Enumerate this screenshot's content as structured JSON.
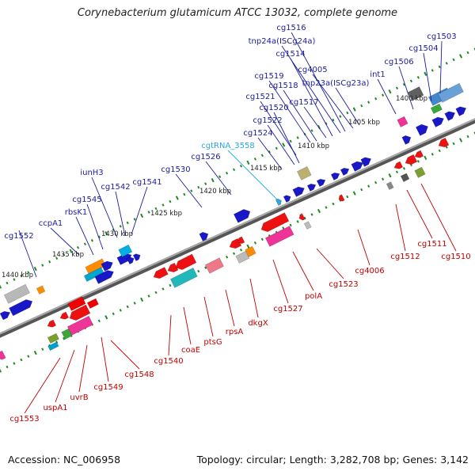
{
  "title": "Corynebacterium glutamicum ATCC 13032, complete genome",
  "footer": {
    "accession": "Accession: NC_006958",
    "topology": "Topology: circular; Length: 3,282,708 bp; Genes: 3,142"
  },
  "colors": {
    "forward_label": "#1c1c9c",
    "reverse_label": "#c00000",
    "rna_label": "#2aa8d8",
    "backbone": "#7a7a7a",
    "ticks": "#1f8a1f"
  },
  "kbp_labels": [
    "1440 kbp",
    "1435 kbp",
    "1430 kbp",
    "1425 kbp",
    "1420 kbp",
    "1415 kbp",
    "1410 kbp",
    "1405 kbp",
    "1400 kbp"
  ],
  "forward_labels": [
    "cg1552",
    "ccpA1",
    "rbsK1",
    "cg1545",
    "iunH3",
    "cg1542",
    "cg1541",
    "cg1530",
    "cg1526",
    "cg1524",
    "cg1522",
    "cg1520",
    "cg1521",
    "cg1519",
    "cg1518",
    "cg1517",
    "cg1514",
    "tnp24a(ISCg24a)",
    "cg1516",
    "cg4005",
    "tnp23a(ISCg23a)",
    "int1",
    "cg1506",
    "cg1504",
    "cg1503"
  ],
  "rna_labels": [
    "cgtRNA_3558"
  ],
  "reverse_labels": [
    "cg1553",
    "uspA1",
    "uvrB",
    "cg1549",
    "cg1548",
    "cg1540",
    "coaE",
    "ptsG",
    "rpsA",
    "dkgX",
    "cg1527",
    "polA",
    "cg1523",
    "cg4006",
    "cg1512",
    "cg1511",
    "cg1510"
  ]
}
